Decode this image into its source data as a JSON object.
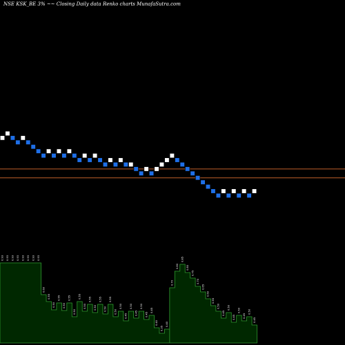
{
  "chart_data": {
    "type": "renko",
    "title": "NSE KSK_BE 3% ~~ Closing Daily data Renko charts MunafaSutra.com",
    "colors": {
      "background": "#000000",
      "up_brick": "#ffffff",
      "down_brick": "#1e6fe8",
      "reference_line": "#c0602a",
      "volume_fill": "#002800",
      "volume_stroke": "#2f9a2f"
    },
    "reference_lines": [
      {
        "value": 0.63
      },
      {
        "value": 0.61
      }
    ],
    "y_range": [
      0.51,
      0.72
    ],
    "bricks": [
      {
        "dir": "up",
        "value": 0.7
      },
      {
        "dir": "up",
        "value": 0.71
      },
      {
        "dir": "down",
        "value": 0.7
      },
      {
        "dir": "down",
        "value": 0.69
      },
      {
        "dir": "up",
        "value": 0.7
      },
      {
        "dir": "down",
        "value": 0.69
      },
      {
        "dir": "down",
        "value": 0.68
      },
      {
        "dir": "down",
        "value": 0.67
      },
      {
        "dir": "down",
        "value": 0.66
      },
      {
        "dir": "up",
        "value": 0.67
      },
      {
        "dir": "down",
        "value": 0.66
      },
      {
        "dir": "up",
        "value": 0.67
      },
      {
        "dir": "down",
        "value": 0.66
      },
      {
        "dir": "up",
        "value": 0.67
      },
      {
        "dir": "down",
        "value": 0.66
      },
      {
        "dir": "down",
        "value": 0.65
      },
      {
        "dir": "up",
        "value": 0.66
      },
      {
        "dir": "down",
        "value": 0.65
      },
      {
        "dir": "up",
        "value": 0.66
      },
      {
        "dir": "down",
        "value": 0.65
      },
      {
        "dir": "down",
        "value": 0.64
      },
      {
        "dir": "up",
        "value": 0.65
      },
      {
        "dir": "down",
        "value": 0.64
      },
      {
        "dir": "up",
        "value": 0.65
      },
      {
        "dir": "down",
        "value": 0.64
      },
      {
        "dir": "up",
        "value": 0.64
      },
      {
        "dir": "down",
        "value": 0.63
      },
      {
        "dir": "down",
        "value": 0.62
      },
      {
        "dir": "up",
        "value": 0.63
      },
      {
        "dir": "down",
        "value": 0.62
      },
      {
        "dir": "up",
        "value": 0.63
      },
      {
        "dir": "up",
        "value": 0.64
      },
      {
        "dir": "up",
        "value": 0.65
      },
      {
        "dir": "up",
        "value": 0.66
      },
      {
        "dir": "down",
        "value": 0.65
      },
      {
        "dir": "down",
        "value": 0.64
      },
      {
        "dir": "down",
        "value": 0.63
      },
      {
        "dir": "down",
        "value": 0.62
      },
      {
        "dir": "down",
        "value": 0.61
      },
      {
        "dir": "down",
        "value": 0.6
      },
      {
        "dir": "down",
        "value": 0.59
      },
      {
        "dir": "down",
        "value": 0.58
      },
      {
        "dir": "down",
        "value": 0.57
      },
      {
        "dir": "up",
        "value": 0.58
      },
      {
        "dir": "down",
        "value": 0.57
      },
      {
        "dir": "up",
        "value": 0.58
      },
      {
        "dir": "down",
        "value": 0.57
      },
      {
        "dir": "up",
        "value": 0.58
      },
      {
        "dir": "down",
        "value": 0.57
      },
      {
        "dir": "up",
        "value": 0.58
      }
    ],
    "volume": {
      "label_values": [
        0.93,
        0.93,
        0.93,
        0.93,
        0.93,
        0.93,
        0.93,
        0.93,
        0.6,
        0.55,
        0.5,
        0.55,
        0.5,
        0.55,
        0.5,
        0.55,
        0.5,
        0.55,
        0.5,
        0.55,
        0.5,
        0.55,
        0.5,
        0.5,
        0.45,
        0.5,
        0.45,
        0.5,
        0.45,
        0.45,
        0.4,
        0.35,
        0.4,
        0.7,
        0.8,
        0.85,
        0.8,
        0.75,
        0.7,
        0.65,
        0.6,
        0.55,
        0.5,
        0.45,
        0.5,
        0.45,
        0.5,
        0.45,
        0.5,
        0.45
      ],
      "heights": [
        116,
        116,
        116,
        116,
        116,
        116,
        116,
        116,
        70,
        60,
        48,
        58,
        47,
        58,
        38,
        60,
        46,
        56,
        44,
        56,
        42,
        56,
        38,
        46,
        32,
        46,
        36,
        46,
        34,
        40,
        22,
        14,
        20,
        80,
        104,
        114,
        102,
        94,
        82,
        74,
        64,
        54,
        46,
        36,
        44,
        30,
        40,
        32,
        38,
        26
      ]
    }
  }
}
